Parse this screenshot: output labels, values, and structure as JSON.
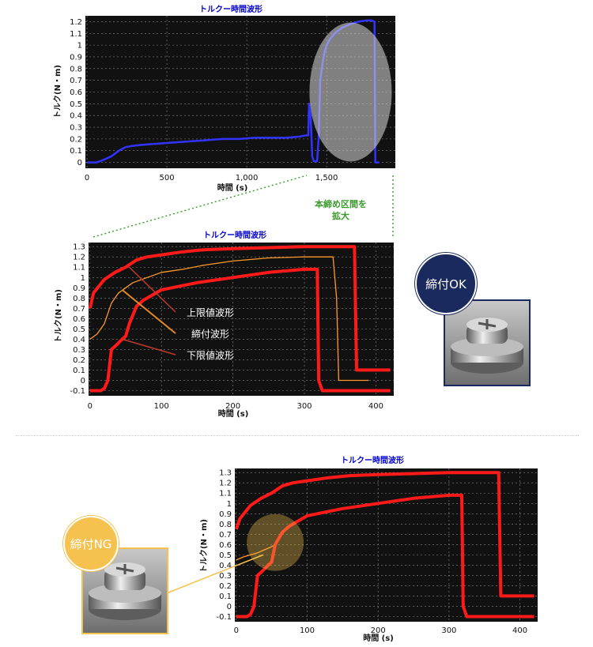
{
  "colors": {
    "plot_bg": "#111111",
    "grid": "#8a8a8a",
    "blue_trace": "#3333ff",
    "upper_limit": "#ff1a1a",
    "lower_limit": "#ff1a1a",
    "tightening": "#ff9a2a",
    "title": "#0000cc",
    "zoom_note": "#3a9a2c",
    "ok_badge": "#1a2a5e",
    "ng_badge": "#f5c24f",
    "tag_upper": "#f4504a",
    "tag_tight": "#f59a30",
    "tag_lower": "#f4504a"
  },
  "zoom_note": {
    "line1": "本締め区間を",
    "line2": "拡大"
  },
  "legend_tags": {
    "upper": "上限値波形",
    "tight": "締付波形",
    "lower": "下限値波形"
  },
  "badges": {
    "ok": "締付OK",
    "ng": "締付NG"
  },
  "icons": {
    "ok_photo": "screw-washer-photo",
    "ng_photo": "screw-washer-photo"
  },
  "chart_data": [
    {
      "type": "line",
      "title": "トルクー時間波形",
      "xlabel": "時間 (s)",
      "ylabel": "トルク(N・m)",
      "xlim": [
        -10,
        1930
      ],
      "ylim": [
        -0.05,
        1.25
      ],
      "xticks": [
        0,
        500,
        1000,
        1500
      ],
      "xtick_labels": [
        "0",
        "500",
        "1,000",
        "1,500"
      ],
      "yticks": [
        0,
        0.1,
        0.2,
        0.3,
        0.4,
        0.5,
        0.6,
        0.7,
        0.8,
        0.9,
        1,
        1.1,
        1.2
      ],
      "ytick_labels": [
        "0",
        "0.1",
        "0.2",
        "0.3",
        "0.4",
        "0.5",
        "0.6",
        "0.7",
        "0.8",
        "0.9",
        "1",
        "1.1",
        "1.2"
      ],
      "grid": true,
      "series": [
        {
          "color": "#3333ff",
          "x": [
            0,
            60,
            100,
            150,
            200,
            240,
            280,
            350,
            450,
            550,
            650,
            750,
            850,
            950,
            1050,
            1150,
            1250,
            1330,
            1370,
            1385,
            1390,
            1400,
            1410,
            1420,
            1440,
            1450,
            1460,
            1480,
            1500,
            1520,
            1550,
            1600,
            1650,
            1700,
            1750,
            1780,
            1800,
            1805,
            1830
          ],
          "y": [
            0,
            0,
            0.02,
            0.05,
            0.1,
            0.13,
            0.14,
            0.15,
            0.16,
            0.17,
            0.18,
            0.19,
            0.2,
            0.2,
            0.21,
            0.21,
            0.21,
            0.22,
            0.23,
            0.23,
            0.5,
            0.4,
            0.05,
            0.01,
            0.01,
            0.2,
            0.7,
            0.9,
            1.0,
            1.05,
            1.1,
            1.15,
            1.18,
            1.2,
            1.21,
            1.21,
            1.2,
            0,
            0
          ]
        }
      ]
    },
    {
      "type": "line",
      "title": "トルクー時間波形",
      "xlabel": "時間 (s)",
      "ylabel": "トルク(N・m)",
      "xlim": [
        -2,
        425
      ],
      "ylim": [
        -0.15,
        1.34
      ],
      "xticks": [
        0,
        100,
        200,
        300,
        400
      ],
      "xtick_labels": [
        "0",
        "100",
        "200",
        "300",
        "400"
      ],
      "yticks": [
        -0.1,
        0,
        0.1,
        0.2,
        0.3,
        0.4,
        0.5,
        0.6,
        0.7,
        0.8,
        0.9,
        1,
        1.1,
        1.2,
        1.3
      ],
      "ytick_labels": [
        "-0.1",
        "0",
        "0.1",
        "0.2",
        "0.3",
        "0.4",
        "0.5",
        "0.6",
        "0.7",
        "0.8",
        "0.9",
        "1",
        "1.1",
        "1.2",
        "1.3"
      ],
      "grid": true,
      "series": [
        {
          "color": "#ff1a1a",
          "x": [
            0,
            5,
            20,
            35,
            50,
            65,
            80,
            100,
            130,
            160,
            200,
            250,
            300,
            340,
            370,
            373,
            380,
            420
          ],
          "y": [
            0.7,
            0.85,
            0.98,
            1.05,
            1.1,
            1.17,
            1.2,
            1.22,
            1.25,
            1.27,
            1.28,
            1.29,
            1.3,
            1.3,
            1.3,
            0.1,
            0.1,
            0.1
          ]
        },
        {
          "color": "#ff9a2a",
          "x": [
            0,
            10,
            20,
            25,
            30,
            35,
            40,
            50,
            60,
            80,
            100,
            130,
            160,
            200,
            250,
            300,
            340,
            345,
            348,
            360,
            390
          ],
          "y": [
            0.4,
            0.45,
            0.55,
            0.65,
            0.75,
            0.8,
            0.85,
            0.9,
            0.95,
            1.0,
            1.05,
            1.08,
            1.12,
            1.16,
            1.19,
            1.2,
            1.2,
            0.8,
            0.0,
            0.0,
            0.0
          ]
        },
        {
          "color": "#ff1a1a",
          "x": [
            0,
            15,
            20,
            25,
            30,
            35,
            45,
            50,
            55,
            65,
            75,
            100,
            150,
            200,
            250,
            300,
            318,
            320,
            325,
            420
          ],
          "y": [
            -0.1,
            -0.1,
            -0.08,
            0.0,
            0.3,
            0.33,
            0.4,
            0.43,
            0.55,
            0.72,
            0.78,
            0.88,
            0.95,
            1.0,
            1.05,
            1.08,
            1.08,
            0.0,
            -0.1,
            -0.1
          ]
        }
      ]
    },
    {
      "type": "line",
      "title": "トルクー時間波形",
      "xlabel": "時間 (s)",
      "ylabel": "トルク(N・m)",
      "xlim": [
        -2,
        425
      ],
      "ylim": [
        -0.15,
        1.34
      ],
      "xticks": [
        0,
        100,
        200,
        300,
        400
      ],
      "xtick_labels": [
        "0",
        "100",
        "200",
        "300",
        "400"
      ],
      "yticks": [
        -0.1,
        0,
        0.1,
        0.2,
        0.3,
        0.4,
        0.5,
        0.6,
        0.7,
        0.8,
        0.9,
        1,
        1.1,
        1.2,
        1.3
      ],
      "ytick_labels": [
        "-0.1",
        "0",
        "0.1",
        "0.2",
        "0.3",
        "0.4",
        "0.5",
        "0.6",
        "0.7",
        "0.8",
        "0.9",
        "1",
        "1.1",
        "1.2",
        "1.3"
      ],
      "grid": true,
      "series": [
        {
          "color": "#ff1a1a",
          "x": [
            0,
            5,
            20,
            35,
            50,
            65,
            80,
            100,
            130,
            160,
            200,
            250,
            300,
            340,
            370,
            373,
            380,
            420
          ],
          "y": [
            0.75,
            0.85,
            0.98,
            1.05,
            1.1,
            1.17,
            1.2,
            1.22,
            1.25,
            1.27,
            1.28,
            1.29,
            1.3,
            1.3,
            1.3,
            0.1,
            0.1,
            0.1
          ]
        },
        {
          "color": "#ff9a2a",
          "x": [
            0,
            10,
            20,
            30,
            40,
            50,
            55
          ],
          "y": [
            0.45,
            0.48,
            0.5,
            0.52,
            0.55,
            0.58,
            0.6
          ]
        },
        {
          "color": "#ff1a1a",
          "x": [
            0,
            15,
            20,
            25,
            30,
            35,
            45,
            50,
            55,
            65,
            75,
            100,
            150,
            200,
            250,
            300,
            318,
            320,
            325,
            420
          ],
          "y": [
            -0.1,
            -0.1,
            -0.08,
            0.0,
            0.3,
            0.33,
            0.4,
            0.43,
            0.6,
            0.72,
            0.78,
            0.88,
            0.95,
            1.0,
            1.05,
            1.08,
            1.08,
            0.0,
            -0.1,
            -0.1
          ]
        }
      ]
    }
  ]
}
